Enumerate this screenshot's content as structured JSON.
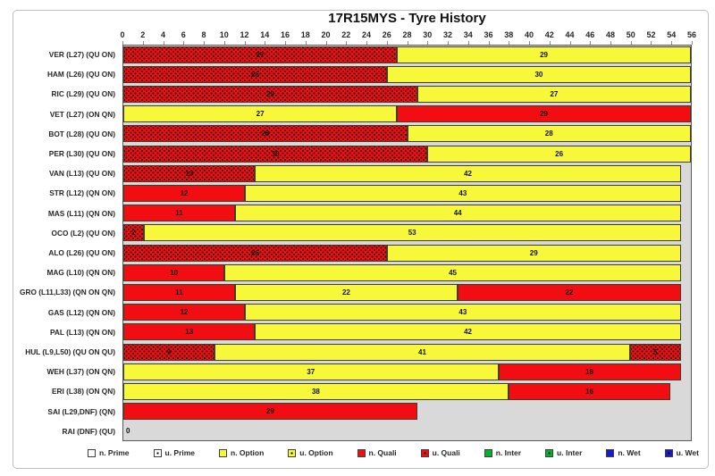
{
  "title": "17R15MYS - Tyre History",
  "colors": {
    "prime": "#FFFFFF",
    "option": "#F8F83B",
    "quali": "#F20D13",
    "inter": "#00B22C",
    "wet": "#1A1ACD",
    "plot_bg": "#D9D9D9",
    "frame_border": "#BFBFBF",
    "plot_border": "#595959"
  },
  "chart_data": {
    "type": "bar",
    "orientation": "horizontal",
    "stacked": true,
    "title": "17R15MYS - Tyre History",
    "xlim": [
      0,
      56
    ],
    "x_tick_step": 2,
    "grid": false,
    "legend_position": "bottom",
    "tyre_colors": {
      "Prime": "#FFFFFF",
      "Option": "#F8F83B",
      "Quali": "#F20D13",
      "Inter": "#00B22C",
      "Wet": "#1A1ACD"
    },
    "rows": [
      {
        "label": "VER (L27) (QU ON)",
        "segments": [
          {
            "tyre": "u. Quali",
            "laps": 27
          },
          {
            "tyre": "n. Option",
            "laps": 29
          }
        ]
      },
      {
        "label": "HAM (L26) (QU ON)",
        "segments": [
          {
            "tyre": "u. Quali",
            "laps": 26
          },
          {
            "tyre": "n. Option",
            "laps": 30
          }
        ]
      },
      {
        "label": "RIC (L29) (QU ON)",
        "segments": [
          {
            "tyre": "u. Quali",
            "laps": 29
          },
          {
            "tyre": "n. Option",
            "laps": 27
          }
        ]
      },
      {
        "label": "VET (L27) (ON QN)",
        "segments": [
          {
            "tyre": "n. Option",
            "laps": 27
          },
          {
            "tyre": "n. Quali",
            "laps": 29
          }
        ]
      },
      {
        "label": "BOT (L28) (QU ON)",
        "segments": [
          {
            "tyre": "u. Quali",
            "laps": 28
          },
          {
            "tyre": "n. Option",
            "laps": 28
          }
        ]
      },
      {
        "label": "PER (L30) (QU ON)",
        "segments": [
          {
            "tyre": "u. Quali",
            "laps": 30
          },
          {
            "tyre": "n. Option",
            "laps": 26
          }
        ]
      },
      {
        "label": "VAN (L13) (QU ON)",
        "segments": [
          {
            "tyre": "u. Quali",
            "laps": 13
          },
          {
            "tyre": "n. Option",
            "laps": 42
          }
        ]
      },
      {
        "label": "STR (L12) (QN ON)",
        "segments": [
          {
            "tyre": "n. Quali",
            "laps": 12
          },
          {
            "tyre": "n. Option",
            "laps": 43
          }
        ]
      },
      {
        "label": "MAS (L11) (QN ON)",
        "segments": [
          {
            "tyre": "n. Quali",
            "laps": 11
          },
          {
            "tyre": "n. Option",
            "laps": 44
          }
        ]
      },
      {
        "label": "OCO (L2) (QU ON)",
        "segments": [
          {
            "tyre": "u. Quali",
            "laps": 2
          },
          {
            "tyre": "n. Option",
            "laps": 53
          }
        ]
      },
      {
        "label": "ALO (L26) (QU ON)",
        "segments": [
          {
            "tyre": "u. Quali",
            "laps": 26
          },
          {
            "tyre": "n. Option",
            "laps": 29
          }
        ]
      },
      {
        "label": "MAG (L10) (QN ON)",
        "segments": [
          {
            "tyre": "n. Quali",
            "laps": 10
          },
          {
            "tyre": "n. Option",
            "laps": 45
          }
        ]
      },
      {
        "label": "GRO (L11,L33) (QN ON QN)",
        "segments": [
          {
            "tyre": "n. Quali",
            "laps": 11
          },
          {
            "tyre": "n. Option",
            "laps": 22
          },
          {
            "tyre": "n. Quali",
            "laps": 22
          }
        ]
      },
      {
        "label": "GAS (L12) (QN ON)",
        "segments": [
          {
            "tyre": "n. Quali",
            "laps": 12
          },
          {
            "tyre": "n. Option",
            "laps": 43
          }
        ]
      },
      {
        "label": "PAL (L13) (QN ON)",
        "segments": [
          {
            "tyre": "n. Quali",
            "laps": 13
          },
          {
            "tyre": "n. Option",
            "laps": 42
          }
        ]
      },
      {
        "label": "HUL (L9,L50) (QU ON QU)",
        "segments": [
          {
            "tyre": "u. Quali",
            "laps": 9
          },
          {
            "tyre": "n. Option",
            "laps": 41
          },
          {
            "tyre": "u. Quali",
            "laps": 5
          }
        ]
      },
      {
        "label": "WEH (L37) (ON QN)",
        "segments": [
          {
            "tyre": "n. Option",
            "laps": 37
          },
          {
            "tyre": "n. Quali",
            "laps": 18
          }
        ]
      },
      {
        "label": "ERI (L38) (ON QN)",
        "segments": [
          {
            "tyre": "n. Option",
            "laps": 38
          },
          {
            "tyre": "n. Quali",
            "laps": 16
          }
        ]
      },
      {
        "label": "SAI (L29,DNF) (QN)",
        "segments": [
          {
            "tyre": "n. Quali",
            "laps": 29
          }
        ]
      },
      {
        "label": "RAI (DNF) (QU)",
        "segments": [],
        "zero_label": "0"
      }
    ],
    "legend": [
      "n. Prime",
      "u. Prime",
      "n. Option",
      "u. Option",
      "n. Quali",
      "u. Quali",
      "n. Inter",
      "u. Inter",
      "n. Wet",
      "u. Wet"
    ]
  }
}
